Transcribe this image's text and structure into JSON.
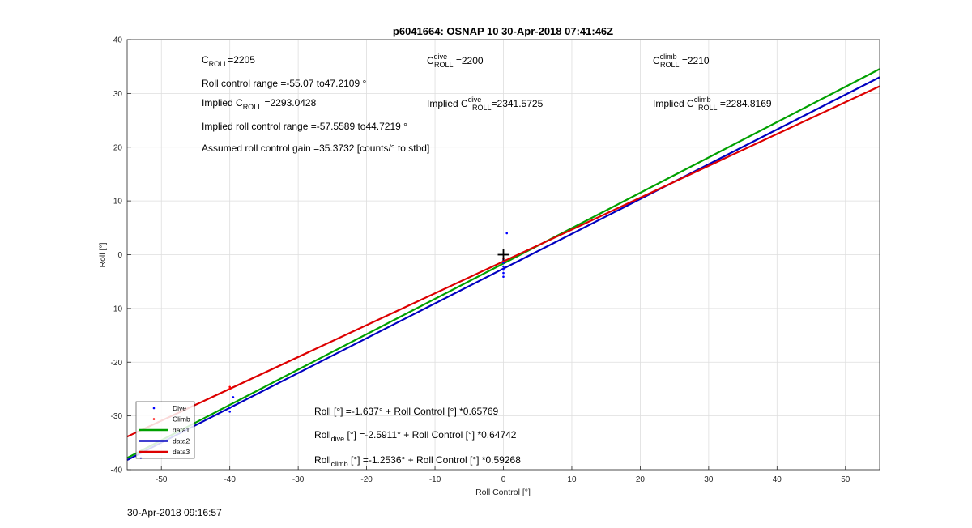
{
  "chart_data": {
    "type": "scatter",
    "title": "p6041664: OSNAP 10 30-Apr-2018 07:41:46Z",
    "xlabel": "Roll Control [°]",
    "ylabel": "Roll [°]",
    "xlim": [
      -55,
      55
    ],
    "ylim": [
      -40,
      40
    ],
    "xticks": [
      -50,
      -40,
      -30,
      -20,
      -10,
      0,
      10,
      20,
      30,
      40,
      50
    ],
    "yticks": [
      -40,
      -30,
      -20,
      -10,
      0,
      10,
      20,
      30,
      40
    ],
    "grid": true,
    "legend_position": "bottom-left",
    "series": [
      {
        "name": "Dive",
        "type": "scatter",
        "color": "#0000ff",
        "points": [
          [
            -40,
            -28.5
          ],
          [
            -40,
            -29.2
          ],
          [
            -39.5,
            -26.5
          ],
          [
            -53,
            -37.8
          ],
          [
            0,
            -1.5
          ],
          [
            0,
            -2.2
          ],
          [
            0,
            -2.8
          ],
          [
            0,
            -3.4
          ],
          [
            0,
            -4.1
          ],
          [
            0.5,
            4.0
          ],
          [
            0,
            -1.0
          ]
        ]
      },
      {
        "name": "Climb",
        "type": "scatter",
        "color": "#ff0000",
        "points": [
          [
            -40,
            -25.0
          ],
          [
            -40,
            -24.6
          ],
          [
            0,
            -1.2
          ],
          [
            0,
            -0.7
          ]
        ]
      },
      {
        "name": "data1",
        "type": "line",
        "color": "#00a000",
        "intercept": -1.637,
        "slope": 0.65769
      },
      {
        "name": "data2",
        "type": "line",
        "color": "#0000c0",
        "intercept": -2.5911,
        "slope": 0.64742
      },
      {
        "name": "data3",
        "type": "line",
        "color": "#dd0000",
        "intercept": -1.2536,
        "slope": 0.59268
      }
    ],
    "marker": {
      "symbol": "+",
      "x": 0,
      "y": 0
    },
    "annotations": {
      "c_roll": {
        "base": "C",
        "sub": "ROLL",
        "value": "=2205"
      },
      "c_roll_dive": {
        "base": "C",
        "sup": "dive",
        "sub": "ROLL",
        "value": " =2200"
      },
      "c_roll_climb": {
        "base": "C",
        "sup": "climb",
        "sub": "ROLL",
        "value": " =2210"
      },
      "roll_range": "Roll control range =-55.07 to47.2109 °",
      "implied_c_roll": {
        "prefix": "Implied C",
        "sub": "ROLL",
        "value": " =2293.0428"
      },
      "implied_c_dive": {
        "prefix": "Implied C",
        "sup": "dive",
        "sub": "ROLL",
        "value": "=2341.5725"
      },
      "implied_c_climb": {
        "prefix": "Implied C",
        "sup": "climb",
        "sub": "ROLL",
        "value": " =2284.8169"
      },
      "implied_range": "Implied roll control range =-57.5589 to44.7219 °",
      "gain": "Assumed roll control gain =35.3732 [counts/° to stbd]",
      "fit_all": "Roll [°] =-1.637° + Roll Control [°] *0.65769",
      "fit_dive": {
        "base": "Roll",
        "sub": "dive",
        "rest": " [°] =-2.5911° + Roll Control [°] *0.64742"
      },
      "fit_climb": {
        "base": "Roll",
        "sub": "climb",
        "rest": " [°] =-1.2536° + Roll Control [°] *0.59268"
      }
    }
  },
  "footer": {
    "timestamp": "30-Apr-2018 09:16:57"
  }
}
